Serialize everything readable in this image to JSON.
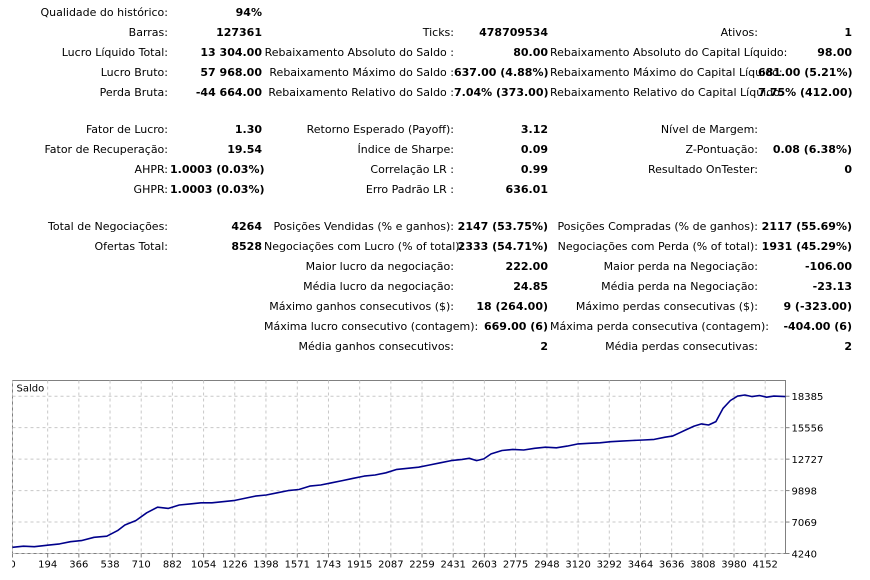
{
  "rows": [
    [
      {
        "l": "Qualidade do histórico:",
        "v": "94%"
      },
      null,
      null
    ],
    [
      {
        "l": "Barras:",
        "v": "127361"
      },
      {
        "l": "Ticks:",
        "v": "478709534"
      },
      {
        "l": "Ativos:",
        "v": "1"
      }
    ],
    [
      {
        "l": "Lucro Líquido Total:",
        "v": "13 304.00"
      },
      {
        "l": "Rebaixamento Absoluto do Saldo :",
        "v": "80.00"
      },
      {
        "l": "Rebaixamento Absoluto do Capital Líquido:",
        "v": "98.00"
      }
    ],
    [
      {
        "l": "Lucro Bruto:",
        "v": "57 968.00"
      },
      {
        "l": "Rebaixamento Máximo do Saldo :",
        "v": "637.00 (4.88%)"
      },
      {
        "l": "Rebaixamento Máximo do Capital Líquido:",
        "v": "681.00 (5.21%)"
      }
    ],
    [
      {
        "l": "Perda Bruta:",
        "v": "-44 664.00"
      },
      {
        "l": "Rebaixamento Relativo do Saldo :",
        "v": "7.04% (373.00)"
      },
      {
        "l": "Rebaixamento Relativo do Capital Líquido:",
        "v": "7.75% (412.00)"
      }
    ],
    null,
    [
      {
        "l": "Fator de Lucro:",
        "v": "1.30"
      },
      {
        "l": "Retorno Esperado (Payoff):",
        "v": "3.12"
      },
      {
        "l": "Nível de Margem:",
        "v": ""
      }
    ],
    [
      {
        "l": "Fator de Recuperação:",
        "v": "19.54"
      },
      {
        "l": "Índice de Sharpe:",
        "v": "0.09"
      },
      {
        "l": "Z-Pontuação:",
        "v": "0.08 (6.38%)"
      }
    ],
    [
      {
        "l": "AHPR:",
        "v": "1.0003 (0.03%)"
      },
      {
        "l": "Correlação LR :",
        "v": "0.99"
      },
      {
        "l": "Resultado OnTester:",
        "v": "0"
      }
    ],
    [
      {
        "l": "GHPR:",
        "v": "1.0003 (0.03%)"
      },
      {
        "l": "Erro Padrão LR :",
        "v": "636.01"
      },
      null
    ],
    null,
    [
      {
        "l": "Total de Negociações:",
        "v": "4264"
      },
      {
        "l": "Posições Vendidas (% e ganhos):",
        "v": "2147 (53.75%)"
      },
      {
        "l": "Posições Compradas (% de ganhos):",
        "v": "2117 (55.69%)"
      }
    ],
    [
      {
        "l": "Ofertas Total:",
        "v": "8528"
      },
      {
        "l": "Negociações com Lucro (% of total):",
        "v": "2333 (54.71%)"
      },
      {
        "l": "Negociações com Perda (% of total):",
        "v": "1931 (45.29%)"
      }
    ],
    [
      null,
      {
        "l": "Maior lucro da negociação:",
        "v": "222.00"
      },
      {
        "l": "Maior perda na Negociação:",
        "v": "-106.00"
      }
    ],
    [
      null,
      {
        "l": "Média lucro da negociação:",
        "v": "24.85"
      },
      {
        "l": "Média perda na Negociação:",
        "v": "-23.13"
      }
    ],
    [
      null,
      {
        "l": "Máximo ganhos consecutivos ($):",
        "v": "18 (264.00)"
      },
      {
        "l": "Máximo perdas consecutivas ($):",
        "v": "9 (-323.00)"
      }
    ],
    [
      null,
      {
        "l": "Máxima lucro consecutivo (contagem):",
        "v": "669.00 (6)"
      },
      {
        "l": "Máxima perda consecutiva (contagem):",
        "v": "-404.00 (6)"
      }
    ],
    [
      null,
      {
        "l": "Média ganhos consecutivos:",
        "v": "2"
      },
      {
        "l": "Média perdas consecutivas:",
        "v": "2"
      }
    ]
  ],
  "chart_data": {
    "type": "line",
    "title": "Saldo",
    "color": "#00008b",
    "ylim": [
      4240,
      19800
    ],
    "xlim": [
      0,
      4264
    ],
    "yticks": [
      4240,
      7069,
      9898,
      12727,
      15556,
      18385
    ],
    "xticks": [
      0,
      194,
      366,
      538,
      710,
      882,
      1054,
      1226,
      1398,
      1571,
      1743,
      1915,
      2087,
      2259,
      2431,
      2603,
      2775,
      2948,
      3120,
      3292,
      3464,
      3636,
      3808,
      3980,
      4152
    ],
    "grid": true,
    "series": [
      {
        "x": [
          0,
          60,
          120,
          200,
          260,
          320,
          380,
          450,
          520,
          580,
          620,
          680,
          740,
          800,
          860,
          920,
          980,
          1040,
          1100,
          1160,
          1220,
          1280,
          1340,
          1400,
          1460,
          1520,
          1580,
          1640,
          1700,
          1760,
          1820,
          1880,
          1940,
          2000,
          2060,
          2120,
          2180,
          2240,
          2300,
          2360,
          2420,
          2480,
          2520,
          2560,
          2600,
          2640,
          2700,
          2760,
          2820,
          2880,
          2940,
          3000,
          3060,
          3120,
          3180,
          3240,
          3300,
          3360,
          3420,
          3480,
          3540,
          3600,
          3640,
          3680,
          3720,
          3760,
          3800,
          3840,
          3880,
          3920,
          3960,
          4000,
          4040,
          4080,
          4120,
          4160,
          4200,
          4264
        ],
        "y": [
          4800,
          4900,
          4850,
          5000,
          5100,
          5300,
          5400,
          5700,
          5800,
          6300,
          6800,
          7200,
          7900,
          8400,
          8300,
          8600,
          8700,
          8800,
          8800,
          8900,
          9000,
          9200,
          9400,
          9500,
          9700,
          9900,
          10000,
          10300,
          10400,
          10600,
          10800,
          11000,
          11200,
          11300,
          11500,
          11800,
          11900,
          12000,
          12200,
          12400,
          12600,
          12700,
          12800,
          12600,
          12750,
          13200,
          13500,
          13600,
          13550,
          13700,
          13800,
          13750,
          13900,
          14100,
          14150,
          14200,
          14300,
          14350,
          14400,
          14450,
          14500,
          14700,
          14800,
          15100,
          15400,
          15700,
          15900,
          15800,
          16100,
          17300,
          18000,
          18400,
          18500,
          18350,
          18450,
          18300,
          18400,
          18350
        ]
      }
    ]
  }
}
